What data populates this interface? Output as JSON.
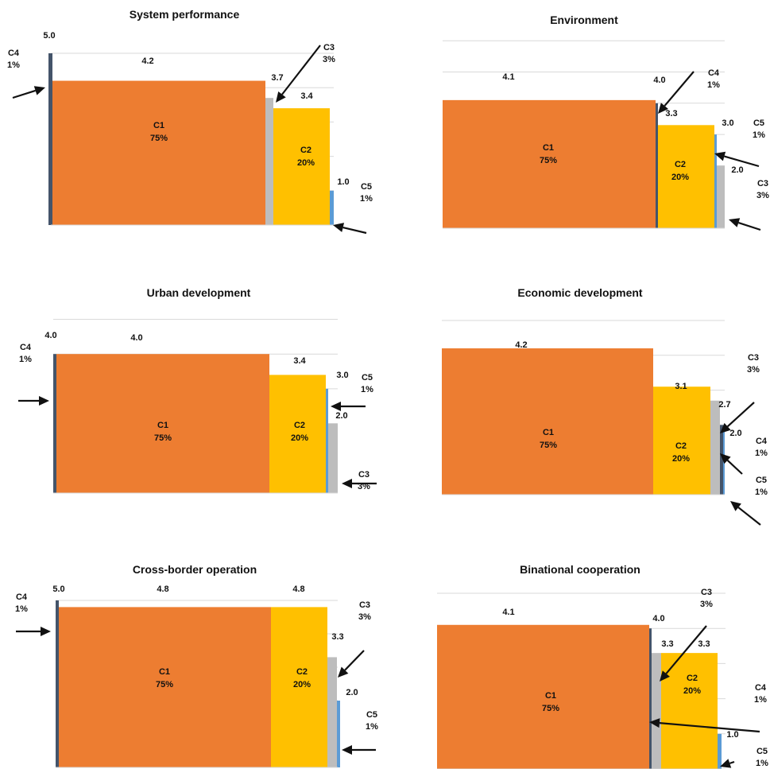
{
  "chart_data": [
    {
      "type": "bar",
      "title": "System performance",
      "ylim": [
        0,
        6
      ],
      "grid": true,
      "segments": [
        {
          "name": "C1",
          "share": "75%",
          "value": 4.2
        },
        {
          "name": "C3",
          "share": "3%",
          "value": 3.7
        },
        {
          "name": "C2",
          "share": "20%",
          "value": 3.4
        },
        {
          "name": "C5",
          "share": "1%",
          "value": 1.0
        }
      ],
      "extra_segments": [
        {
          "name": "C4",
          "share": "1%",
          "value": 5.0,
          "position": "left"
        }
      ]
    },
    {
      "type": "bar",
      "title": "Environment",
      "ylim": [
        0,
        6
      ],
      "grid": true,
      "segments": [
        {
          "name": "C1",
          "share": "75%",
          "value": 4.1
        },
        {
          "name": "C4",
          "share": "1%",
          "value": 4.0
        },
        {
          "name": "C2",
          "share": "20%",
          "value": 3.3
        },
        {
          "name": "C5",
          "share": "1%",
          "value": 3.0
        },
        {
          "name": "C3",
          "share": "3%",
          "value": 2.0
        }
      ]
    },
    {
      "type": "bar",
      "title": "Urban development",
      "ylim": [
        0,
        5
      ],
      "grid": true,
      "segments": [
        {
          "name": "C4",
          "share": "1%",
          "value": 4.0
        },
        {
          "name": "C1",
          "share": "75%",
          "value": 4.0
        },
        {
          "name": "C2",
          "share": "20%",
          "value": 3.4
        },
        {
          "name": "C5",
          "share": "1%",
          "value": 3.0
        },
        {
          "name": "C3",
          "share": "3%",
          "value": 2.0
        }
      ]
    },
    {
      "type": "bar",
      "title": "Economic development",
      "ylim": [
        0,
        5
      ],
      "grid": true,
      "segments": [
        {
          "name": "C1",
          "share": "75%",
          "value": 4.2
        },
        {
          "name": "C2",
          "share": "20%",
          "value": 3.1
        },
        {
          "name": "C3",
          "share": "3%",
          "value": 2.7
        },
        {
          "name": "C4",
          "share": "1%",
          "value": 2.0
        },
        {
          "name": "C5",
          "share": "1%",
          "value": 2.0
        }
      ]
    },
    {
      "type": "bar",
      "title": "Cross-border operation",
      "ylim": [
        0,
        5
      ],
      "grid": true,
      "segments": [
        {
          "name": "C4",
          "share": "1%",
          "value": 5.0
        },
        {
          "name": "C1",
          "share": "75%",
          "value": 4.8
        },
        {
          "name": "C2",
          "share": "20%",
          "value": 4.8
        },
        {
          "name": "C3",
          "share": "3%",
          "value": 3.3
        },
        {
          "name": "C5",
          "share": "1%",
          "value": 2.0
        }
      ]
    },
    {
      "type": "bar",
      "title": "Binational cooperation",
      "ylim": [
        0,
        5
      ],
      "grid": true,
      "segments": [
        {
          "name": "C1",
          "share": "75%",
          "value": 4.1
        },
        {
          "name": "C4",
          "share": "1%",
          "value": 4.0
        },
        {
          "name": "C3",
          "share": "3%",
          "value": 3.3
        },
        {
          "name": "C2",
          "share": "20%",
          "value": 3.3
        },
        {
          "name": "C5",
          "share": "1%",
          "value": 1.0
        }
      ]
    }
  ],
  "colors": {
    "C1": "#ED7D31",
    "C2": "#FFC000",
    "C3": "#BDBDBD",
    "C4": "#44546A",
    "C5": "#5B9BD5",
    "grid": "#D9D9D9",
    "arrow": "#111111"
  }
}
